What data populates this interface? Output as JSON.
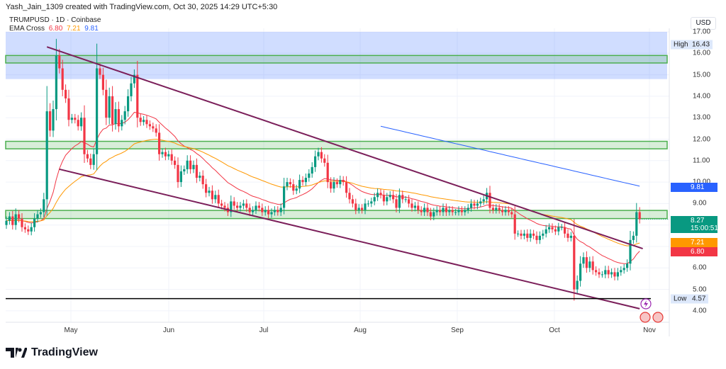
{
  "header": {
    "credit": "Yash_Jain_1309 created with TradingView.com, Oct 30, 2025 14:29 UTC+5:30",
    "symbol_line": "TRUMPUSD · 1D · Coinbase",
    "indicator_name": "EMA Cross",
    "ema_values": [
      "6.80",
      "7.21",
      "9.81"
    ]
  },
  "axis": {
    "currency": "USD",
    "price_ticks": [
      "17.00",
      "16.00",
      "15.00",
      "14.00",
      "13.00",
      "12.00",
      "11.00",
      "10.00",
      "9.00",
      "6.00",
      "5.00",
      "4.00"
    ],
    "time_ticks": [
      "May",
      "Jun",
      "Jul",
      "Aug",
      "Sep",
      "Oct",
      "Nov"
    ]
  },
  "labels": {
    "high_label": "High",
    "high_value": "16.43",
    "low_label": "Low",
    "low_value": "4.57",
    "last_price": "8.27",
    "countdown": "15:00:51",
    "ema_fast": "6.80",
    "ema_mid": "7.21",
    "ema_slow": "9.81"
  },
  "colors": {
    "up": "#089981",
    "down": "#f23645",
    "ema_fast": "#f23645",
    "ema_mid": "#ff9800",
    "ema_slow": "#2962ff",
    "trendline": "#7b1f5a",
    "zone_green": "#4caf50",
    "zone_blue": "#2962ff"
  },
  "brand": "TradingView",
  "chart_data": {
    "type": "candlestick",
    "symbol": "TRUMPUSD",
    "interval": "1D",
    "x_start": "2025-04-10",
    "ylim": [
      3.5,
      17.2
    ],
    "price_scale_ticks": [
      4,
      5,
      6,
      9,
      10,
      11,
      12,
      13,
      14,
      15,
      16,
      17
    ],
    "closes": [
      8.2,
      8.4,
      8.0,
      8.5,
      8.3,
      7.9,
      7.8,
      7.7,
      7.9,
      8.3,
      8.5,
      8.6,
      9.2,
      13.3,
      12.4,
      13.4,
      15.9,
      15.3,
      14.3,
      13.9,
      12.9,
      13.0,
      12.9,
      12.6,
      13.0,
      11.3,
      11.1,
      10.8,
      11.3,
      15.3,
      15.0,
      14.3,
      13.0,
      14.0,
      12.7,
      13.4,
      12.6,
      12.9,
      13.3,
      14.0,
      14.6,
      15.0,
      13.0,
      12.8,
      12.9,
      12.7,
      12.6,
      12.5,
      12.3,
      11.3,
      11.4,
      11.2,
      11.3,
      11.0,
      10.8,
      10.0,
      10.5,
      10.6,
      11.0,
      10.6,
      10.8,
      10.2,
      10.3,
      9.9,
      9.5,
      9.6,
      9.2,
      9.4,
      9.0,
      8.9,
      8.8,
      8.6,
      9.1,
      8.9,
      8.8,
      8.9,
      9.0,
      8.8,
      8.6,
      8.7,
      8.9,
      8.8,
      8.6,
      8.7,
      8.5,
      8.6,
      8.7,
      8.6,
      8.8,
      9.8,
      10.0,
      9.9,
      9.6,
      9.7,
      10.1,
      10.0,
      10.2,
      10.4,
      10.7,
      11.2,
      11.4,
      11.1,
      10.9,
      10.0,
      9.7,
      10.0,
      9.9,
      10.1,
      10.0,
      9.5,
      9.2,
      9.0,
      8.7,
      8.8,
      8.7,
      9.0,
      9.0,
      9.1,
      9.3,
      9.5,
      9.4,
      9.1,
      9.3,
      9.4,
      9.2,
      8.8,
      9.4,
      9.2,
      9.2,
      9.0,
      8.8,
      8.9,
      8.7,
      8.6,
      8.8,
      8.6,
      8.4,
      8.6,
      8.7,
      8.6,
      8.8,
      8.6,
      8.7,
      8.6,
      8.6,
      8.7,
      8.6,
      8.7,
      8.8,
      9.0,
      8.9,
      9.0,
      9.1,
      9.2,
      9.5,
      8.8,
      8.7,
      8.8,
      8.7,
      8.6,
      8.7,
      8.6,
      8.5,
      7.6,
      7.6,
      7.5,
      7.6,
      7.4,
      7.6,
      7.5,
      7.3,
      7.5,
      7.6,
      7.8,
      7.9,
      7.8,
      7.7,
      7.9,
      7.9,
      7.6,
      7.4,
      7.5,
      5.0,
      5.4,
      6.2,
      6.5,
      6.0,
      6.3,
      5.9,
      5.8,
      5.7,
      5.7,
      5.9,
      5.7,
      5.8,
      5.6,
      5.8,
      5.9,
      6.0,
      6.2,
      7.3,
      7.5,
      8.6,
      8.27
    ],
    "high": 16.43,
    "low": 4.57,
    "last": 8.27,
    "ema": [
      {
        "name": "EMA fast",
        "value": 6.8
      },
      {
        "name": "EMA mid",
        "value": 7.21
      },
      {
        "name": "EMA slow",
        "value": 9.81
      }
    ],
    "zones": [
      {
        "color": "blue",
        "from": 14.8,
        "to": 17.0
      },
      {
        "color": "green",
        "from": 15.55,
        "to": 15.9
      },
      {
        "color": "green",
        "from": 11.55,
        "to": 11.9
      },
      {
        "color": "green",
        "from": 8.3,
        "to": 8.68
      }
    ],
    "trendlines": [
      {
        "from": [
          "2025-04-23",
          16.3
        ],
        "to": [
          "2025-10-31",
          6.9
        ]
      },
      {
        "from": [
          "2025-04-27",
          10.6
        ],
        "to": [
          "2025-10-30",
          4.1
        ]
      }
    ],
    "horizontal_lines": [
      4.57
    ]
  }
}
